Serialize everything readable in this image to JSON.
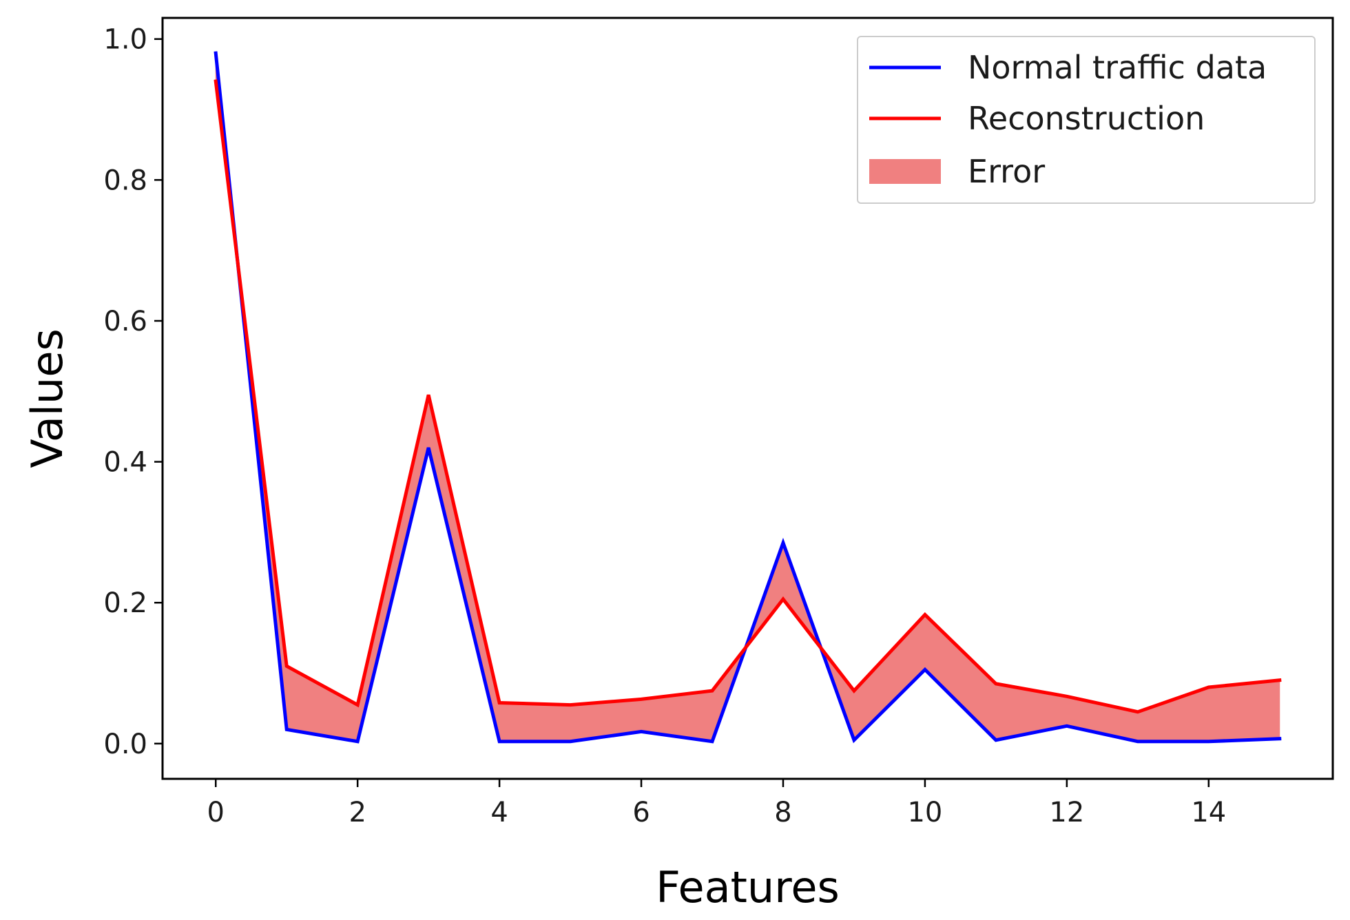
{
  "chart_data": {
    "type": "line",
    "title": "",
    "xlabel": "Features",
    "ylabel": "Values",
    "xlim": [
      -0.75,
      15.75
    ],
    "ylim": [
      -0.05,
      1.03
    ],
    "x": [
      0,
      1,
      2,
      3,
      4,
      5,
      6,
      7,
      8,
      9,
      10,
      11,
      12,
      13,
      14,
      15
    ],
    "xticks": [
      0,
      2,
      4,
      6,
      8,
      10,
      12,
      14
    ],
    "xtick_labels": [
      "0",
      "2",
      "4",
      "6",
      "8",
      "10",
      "12",
      "14"
    ],
    "yticks": [
      0.0,
      0.2,
      0.4,
      0.6,
      0.8,
      1.0
    ],
    "ytick_labels": [
      "0.0",
      "0.2",
      "0.4",
      "0.6",
      "0.8",
      "1.0"
    ],
    "grid": false,
    "legend_position": "top-right",
    "series": [
      {
        "name": "Normal traffic data",
        "color": "#0000ff",
        "values": [
          0.98,
          0.02,
          0.003,
          0.42,
          0.003,
          0.003,
          0.017,
          0.003,
          0.285,
          0.005,
          0.105,
          0.005,
          0.025,
          0.003,
          0.003,
          0.007
        ]
      },
      {
        "name": "Reconstruction",
        "color": "#ff0000",
        "values": [
          0.94,
          0.11,
          0.055,
          0.495,
          0.058,
          0.055,
          0.063,
          0.075,
          0.205,
          0.075,
          0.183,
          0.085,
          0.067,
          0.045,
          0.08,
          0.09
        ]
      }
    ],
    "fill": {
      "name": "Error",
      "color": "#f08080",
      "between": [
        "Normal traffic data",
        "Reconstruction"
      ]
    }
  }
}
